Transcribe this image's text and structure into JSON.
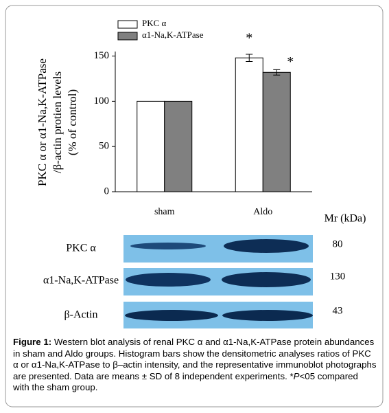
{
  "chart_data": {
    "type": "bar",
    "y_label": [
      "PKC α or α1-Na,K-ATPase",
      "/β-actin protien levels",
      "(% of control)"
    ],
    "categories": [
      "sham",
      "Aldo"
    ],
    "series": [
      {
        "name": "PKC α",
        "color": "#ffffff",
        "values": [
          100,
          148
        ],
        "errors": [
          null,
          4
        ]
      },
      {
        "name": "α1-Na,K-ATPase",
        "color": "#808080",
        "values": [
          100,
          132
        ],
        "errors": [
          null,
          3
        ]
      }
    ],
    "annotations": [
      "*",
      "*"
    ],
    "ylim": [
      0,
      155
    ],
    "yticks": [
      0,
      50,
      100,
      150
    ],
    "grid": false
  },
  "blot": {
    "header": "Mr (kDa)",
    "rows": [
      {
        "label": "PKC α",
        "mr": 80
      },
      {
        "label": "α1-Na,K-ATPase",
        "mr": 130
      },
      {
        "label": "β-Actin",
        "mr": 43
      }
    ]
  },
  "caption": {
    "label": "Figure 1:",
    "text": " Western blot analysis of renal PKC α and α1-Na,K-ATPase protein abundances in sham and Aldo groups. Histogram bars show the densitometric analyses ratios of PKC α  or α1-Na,K-ATPase to β–actin intensity, and the representative immunoblot photographs are presented. Data are means ± SD of 8 independent experiments. *",
    "italic": "P",
    "tail": "<05 compared with the sham group."
  }
}
